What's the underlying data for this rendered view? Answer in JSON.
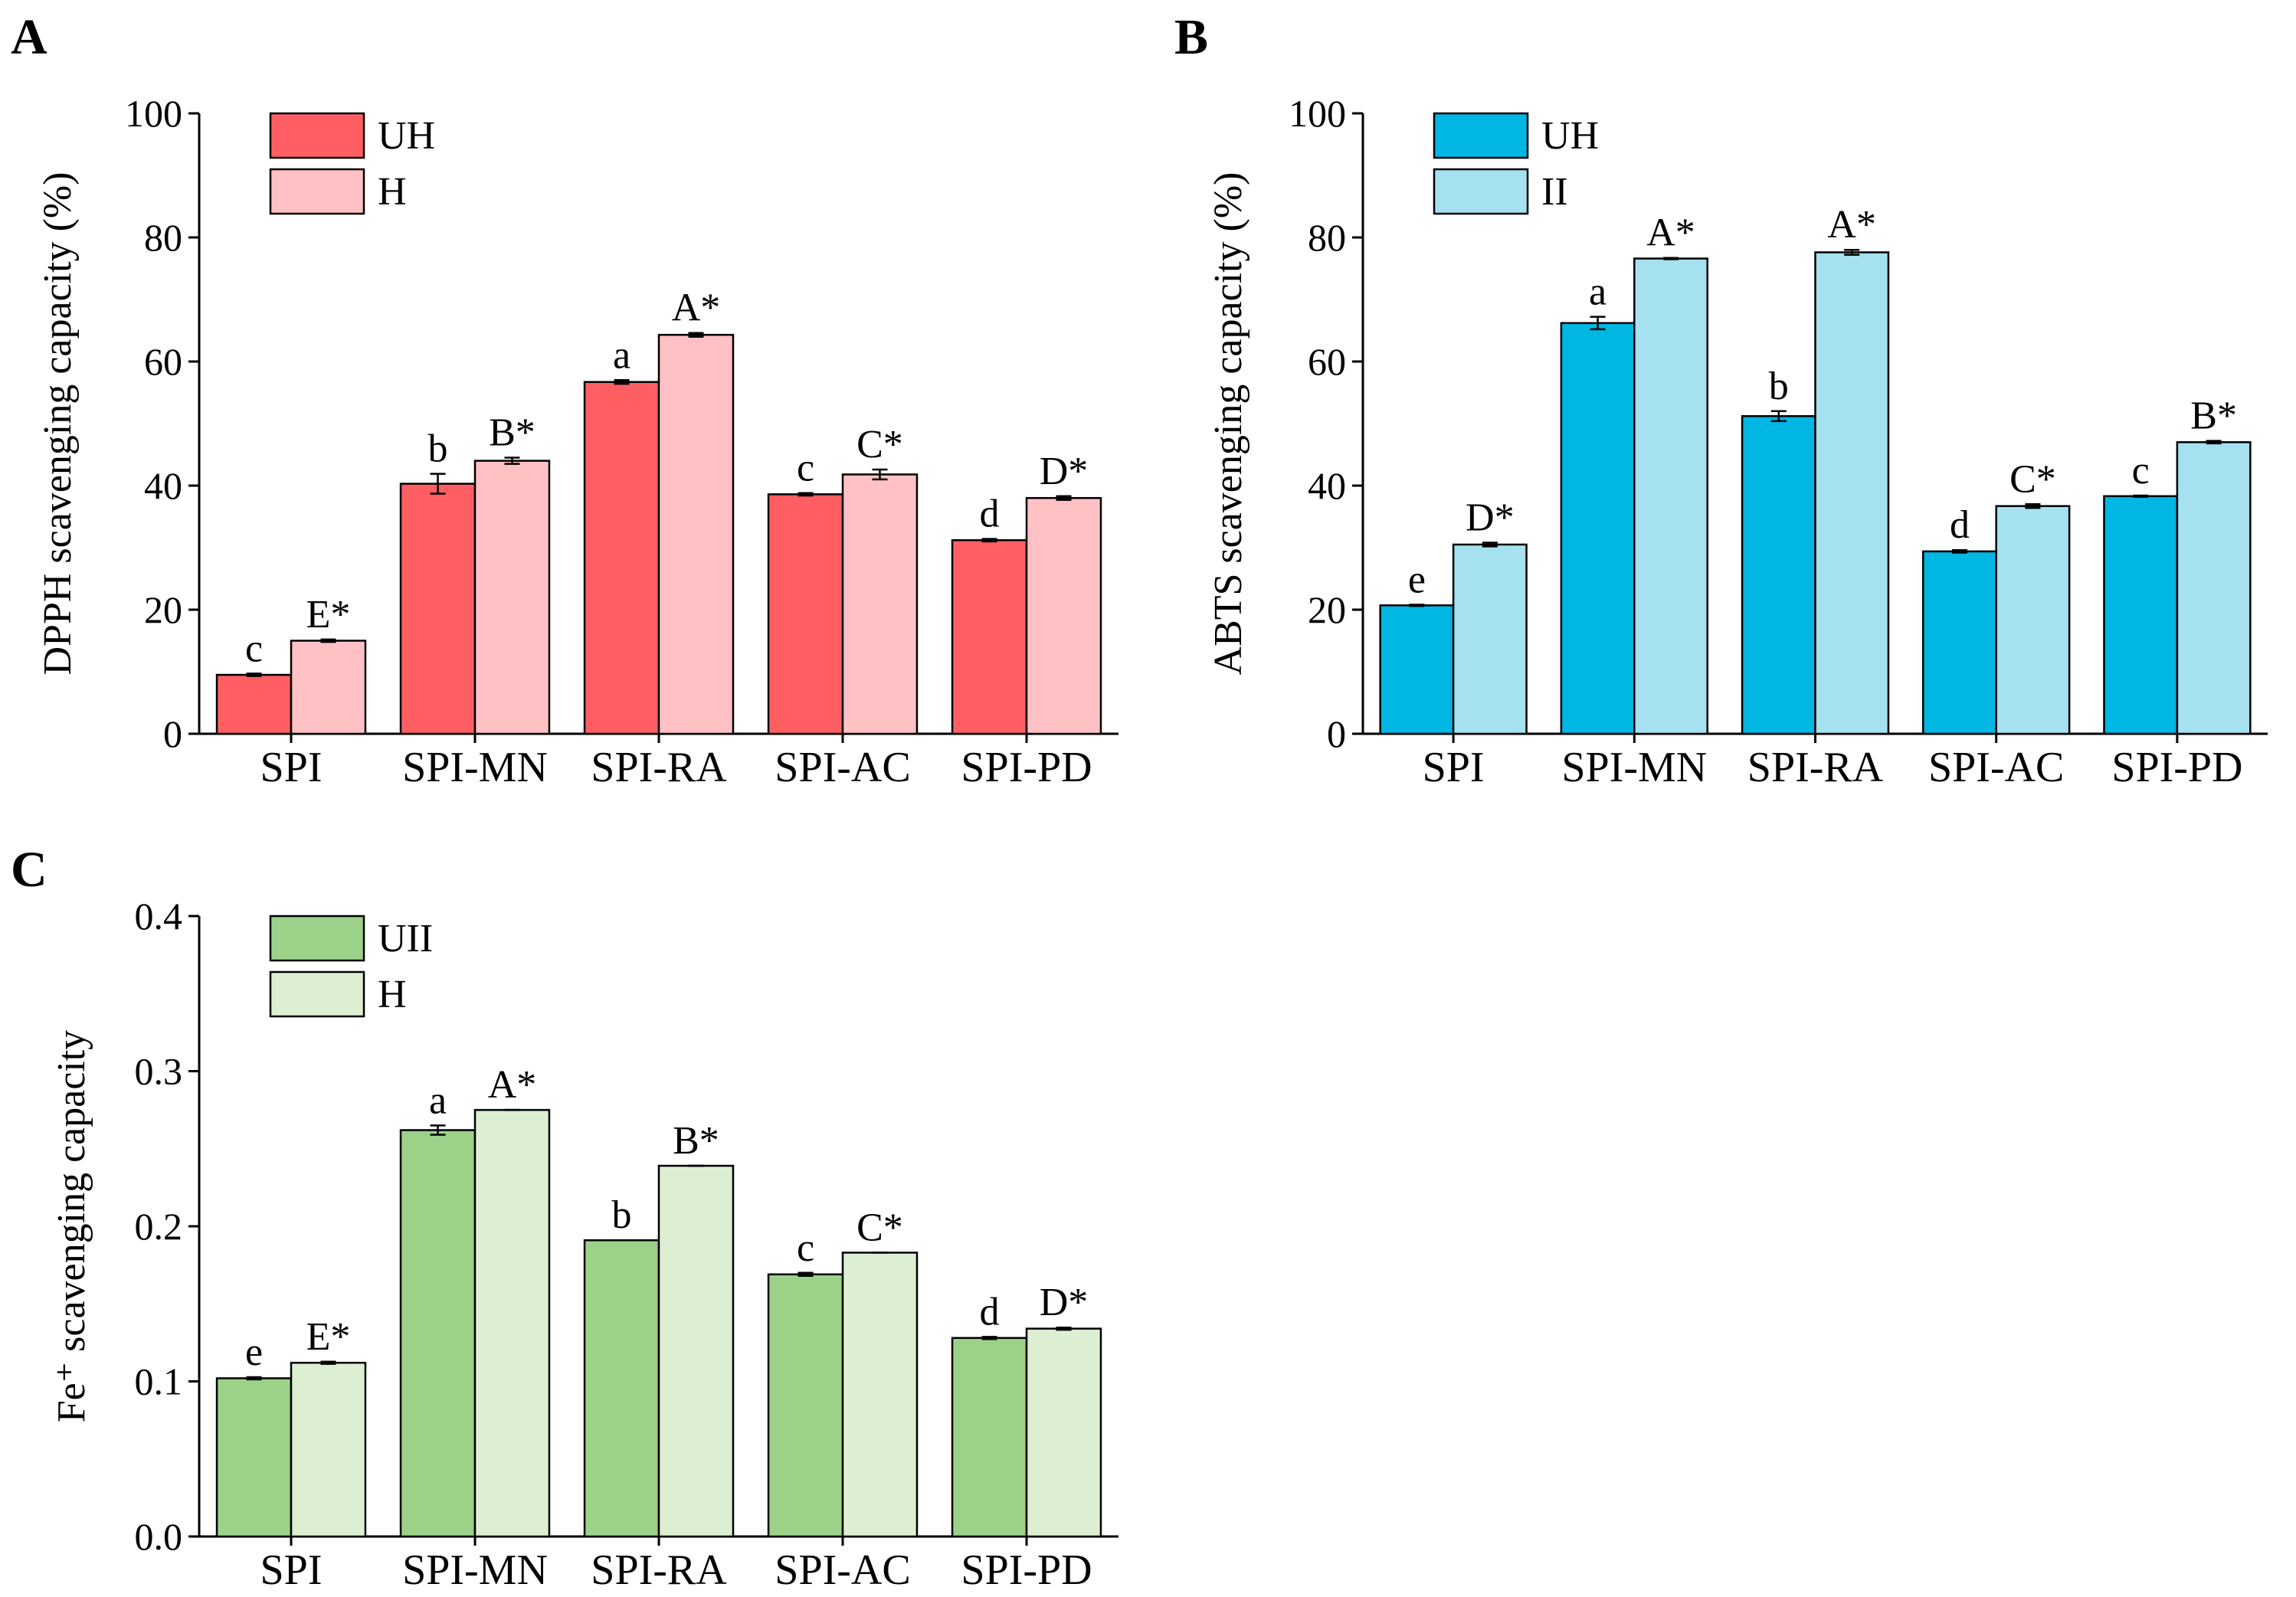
{
  "figure": {
    "colors": {
      "A": {
        "UH": "#FF5F63",
        "H": "#FFC1C4"
      },
      "B": {
        "UH": "#00B6E3",
        "H": "#A5E1EF"
      },
      "C": {
        "UH": "#9CD18A",
        "H": "#DCEFD2"
      },
      "axis": "#000000"
    }
  },
  "chart_data": [
    {
      "id": "A",
      "panel_label": "A",
      "type": "bar",
      "title": "",
      "xlabel": "",
      "ylabel": "DPPH scavenging capacity (%)",
      "ylim": [
        0,
        100
      ],
      "yticks": [
        0,
        20,
        40,
        60,
        80,
        100
      ],
      "ytick_labels": [
        "0",
        "20",
        "40",
        "60",
        "80",
        "100"
      ],
      "categories": [
        "SPI",
        "SPI-MN",
        "SPI-RA",
        "SPI-AC",
        "SPI-PD"
      ],
      "legend_position": "top-left",
      "series": [
        {
          "name": "UH",
          "values": [
            9.5,
            40.3,
            56.7,
            38.6,
            31.2
          ],
          "errors": [
            0.2,
            1.6,
            0.3,
            0.2,
            0.2
          ],
          "letters": [
            "c",
            "b",
            "a",
            "c",
            "d"
          ]
        },
        {
          "name": "H",
          "values": [
            15.0,
            44.0,
            64.3,
            41.8,
            38.0
          ],
          "errors": [
            0.2,
            0.5,
            0.3,
            0.8,
            0.3
          ],
          "letters": [
            "E*",
            "B*",
            "A*",
            "C*",
            "D*"
          ]
        }
      ]
    },
    {
      "id": "B",
      "panel_label": "B",
      "type": "bar",
      "title": "",
      "xlabel": "",
      "ylabel": "ABTS scavenging capacity (%)",
      "ylim": [
        0,
        100
      ],
      "yticks": [
        0,
        20,
        40,
        60,
        80,
        100
      ],
      "ytick_labels": [
        "0",
        "20",
        "40",
        "60",
        "80",
        "100"
      ],
      "categories": [
        "SPI",
        "SPI-MN",
        "SPI-RA",
        "SPI-AC",
        "SPI-PD"
      ],
      "legend_position": "top-left",
      "series": [
        {
          "name": "UH",
          "values": [
            20.7,
            66.2,
            51.2,
            29.4,
            38.3
          ],
          "errors": [
            0.1,
            1.0,
            0.8,
            0.2,
            0.1
          ],
          "letters": [
            "e",
            "a",
            "b",
            "d",
            "c"
          ]
        },
        {
          "name": "II",
          "values": [
            30.5,
            76.6,
            77.6,
            36.7,
            47.0
          ],
          "errors": [
            0.3,
            0.1,
            0.4,
            0.3,
            0.2
          ],
          "letters": [
            "D*",
            "A*",
            "A*",
            "C*",
            "B*"
          ]
        }
      ]
    },
    {
      "id": "C",
      "panel_label": "C",
      "type": "bar",
      "title": "",
      "xlabel": "",
      "ylabel": "Fe⁺ scavenging capacity",
      "ylim": [
        0,
        0.4
      ],
      "yticks": [
        0,
        0.1,
        0.2,
        0.3,
        0.4
      ],
      "ytick_labels": [
        "0.0",
        "0.1",
        "0.2",
        "0.3",
        "0.4"
      ],
      "categories": [
        "SPI",
        "SPI-MN",
        "SPI-RA",
        "SPI-AC",
        "SPI-PD"
      ],
      "legend_position": "top-left",
      "series": [
        {
          "name": "UII",
          "values": [
            0.102,
            0.262,
            0.191,
            0.169,
            0.128
          ],
          "errors": [
            0.0007,
            0.003,
            0.0,
            0.001,
            0.0007
          ],
          "letters": [
            "e",
            "a",
            "b",
            "c",
            "d"
          ]
        },
        {
          "name": "H",
          "values": [
            0.112,
            0.275,
            0.239,
            0.183,
            0.134
          ],
          "errors": [
            0.0007,
            0.0,
            0.0,
            0.0,
            0.0007
          ],
          "letters": [
            "E*",
            "A*",
            "B*",
            "C*",
            "D*"
          ]
        }
      ]
    }
  ]
}
